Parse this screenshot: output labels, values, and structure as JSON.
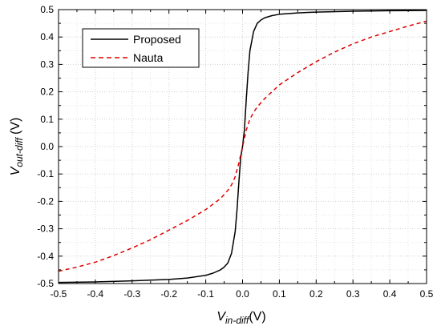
{
  "chart_data": {
    "type": "line",
    "xlabel": {
      "main": "V",
      "sub": "in-diff",
      "unit": "(V)"
    },
    "ylabel": {
      "main": "V",
      "sub": "out-diff",
      "unit": "(V)"
    },
    "xlim": [
      -0.5,
      0.5
    ],
    "ylim": [
      -0.5,
      0.5
    ],
    "xticks": [
      "-0.5",
      "-0.4",
      "-0.3",
      "-0.2",
      "-0.1",
      "0.0",
      "0.1",
      "0.2",
      "0.3",
      "0.4",
      "0.5"
    ],
    "yticks": [
      "-0.5",
      "-0.4",
      "-0.3",
      "-0.2",
      "-0.1",
      "0.0",
      "0.1",
      "0.2",
      "0.3",
      "0.4",
      "0.5"
    ],
    "grid": true,
    "legend_position": "top-left",
    "series": [
      {
        "name": "Proposed",
        "color": "#000000",
        "style": "solid",
        "x": [
          -0.5,
          -0.4,
          -0.3,
          -0.2,
          -0.15,
          -0.1,
          -0.08,
          -0.06,
          -0.05,
          -0.04,
          -0.03,
          -0.02,
          -0.015,
          -0.01,
          -0.005,
          0.0,
          0.005,
          0.01,
          0.015,
          0.02,
          0.03,
          0.04,
          0.05,
          0.06,
          0.08,
          0.1,
          0.15,
          0.2,
          0.3,
          0.4,
          0.5
        ],
        "y": [
          -0.496,
          -0.494,
          -0.49,
          -0.485,
          -0.48,
          -0.47,
          -0.462,
          -0.45,
          -0.44,
          -0.425,
          -0.39,
          -0.31,
          -0.23,
          -0.13,
          -0.04,
          0.0,
          0.06,
          0.17,
          0.27,
          0.35,
          0.42,
          0.45,
          0.462,
          0.47,
          0.478,
          0.483,
          0.488,
          0.491,
          0.494,
          0.496,
          0.497
        ]
      },
      {
        "name": "Nauta",
        "color": "#e00000",
        "style": "dashed",
        "x": [
          -0.5,
          -0.45,
          -0.4,
          -0.35,
          -0.3,
          -0.25,
          -0.2,
          -0.15,
          -0.1,
          -0.08,
          -0.06,
          -0.05,
          -0.04,
          -0.03,
          -0.02,
          -0.01,
          0.0,
          0.01,
          0.02,
          0.03,
          0.04,
          0.05,
          0.06,
          0.08,
          0.1,
          0.15,
          0.2,
          0.25,
          0.3,
          0.35,
          0.4,
          0.45,
          0.5
        ],
        "y": [
          -0.455,
          -0.44,
          -0.422,
          -0.398,
          -0.37,
          -0.34,
          -0.305,
          -0.27,
          -0.23,
          -0.21,
          -0.19,
          -0.175,
          -0.16,
          -0.14,
          -0.11,
          -0.06,
          0.0,
          0.06,
          0.1,
          0.125,
          0.145,
          0.16,
          0.175,
          0.2,
          0.225,
          0.27,
          0.31,
          0.345,
          0.375,
          0.4,
          0.42,
          0.44,
          0.458
        ]
      }
    ]
  }
}
